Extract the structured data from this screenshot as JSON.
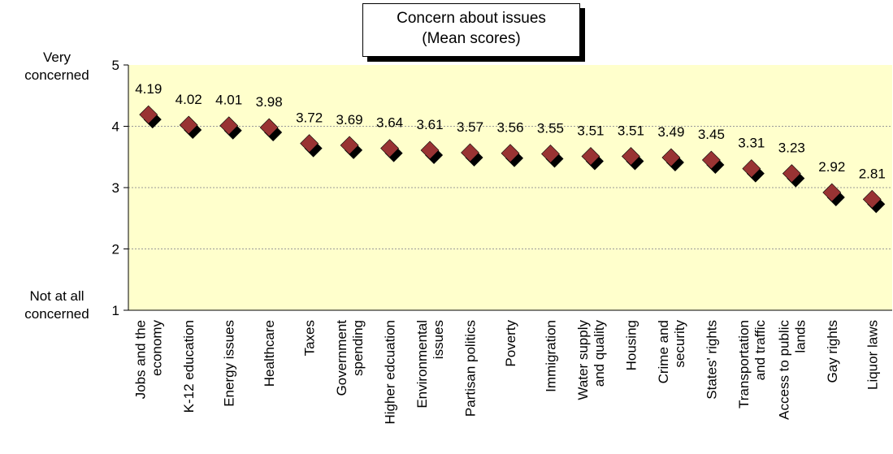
{
  "chart_data": {
    "type": "scatter",
    "title": "Concern about issues",
    "subtitle": "(Mean scores)",
    "categories": [
      "Jobs and the economy",
      "K-12 education",
      "Energy issues",
      "Healthcare",
      "Taxes",
      "Government spending",
      "Higher edcuation",
      "Environmental issues",
      "Partisan politics",
      "Poverty",
      "Immigration",
      "Water supply and quality",
      "Housing",
      "Crime and security",
      "States' rights",
      "Transportation and traffic",
      "Access to public lands",
      "Gay rights",
      "Liquor laws"
    ],
    "category_lines": [
      [
        "Jobs and the",
        "economy"
      ],
      [
        "K-12 education"
      ],
      [
        "Energy issues"
      ],
      [
        "Healthcare"
      ],
      [
        "Taxes"
      ],
      [
        "Government",
        "spending"
      ],
      [
        "Higher edcuation"
      ],
      [
        "Environmental",
        "issues"
      ],
      [
        "Partisan politics"
      ],
      [
        "Poverty"
      ],
      [
        "Immigration"
      ],
      [
        "Water supply",
        "and quality"
      ],
      [
        "Housing"
      ],
      [
        "Crime and",
        "security"
      ],
      [
        "States' rights"
      ],
      [
        "Transportation",
        "and traffic"
      ],
      [
        "Access to public",
        "lands"
      ],
      [
        "Gay rights"
      ],
      [
        "Liquor laws"
      ]
    ],
    "values": [
      4.19,
      4.02,
      4.01,
      3.98,
      3.72,
      3.69,
      3.64,
      3.61,
      3.57,
      3.56,
      3.55,
      3.51,
      3.51,
      3.49,
      3.45,
      3.31,
      3.23,
      2.92,
      2.81
    ],
    "value_labels": [
      "4.19",
      "4.02",
      "4.01",
      "3.98",
      "3.72",
      "3.69",
      "3.64",
      "3.61",
      "3.57",
      "3.56",
      "3.55",
      "3.51",
      "3.51",
      "3.49",
      "3.45",
      "3.31",
      "3.23",
      "2.92",
      "2.81"
    ],
    "ylim": [
      1,
      5
    ],
    "yticks": [
      "1",
      "2",
      "3",
      "4",
      "5"
    ],
    "y_anchor_top": [
      "Very",
      "concerned"
    ],
    "y_anchor_bottom": [
      "Not at all",
      "concerned"
    ],
    "grid": true,
    "colors": {
      "plot_background": "#FFFFCC",
      "marker": "#993333",
      "marker_shadow": "#000000",
      "grid": "#999999"
    }
  }
}
